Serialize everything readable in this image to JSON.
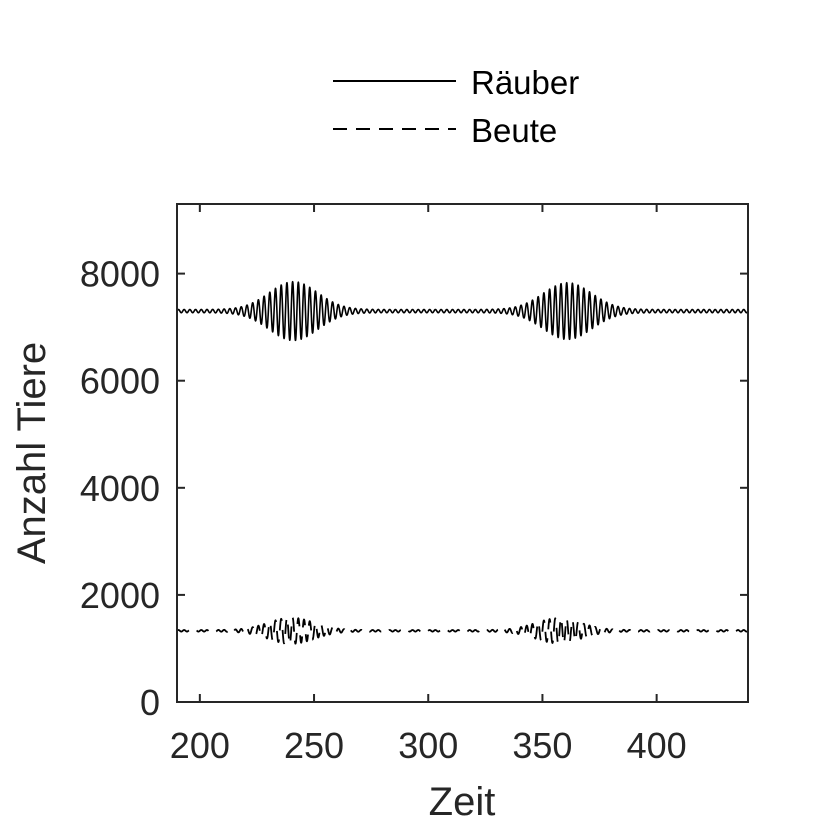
{
  "chart_data": {
    "type": "line",
    "title": "",
    "xlabel": "Zeit",
    "ylabel": "Anzahl Tiere",
    "xlim": [
      190,
      440
    ],
    "ylim": [
      0,
      9300
    ],
    "xticks": [
      200,
      250,
      300,
      350,
      400
    ],
    "yticks": [
      0,
      2000,
      4000,
      6000,
      8000
    ],
    "xtick_labels": [
      "200",
      "250",
      "300",
      "350",
      "400"
    ],
    "ytick_labels": [
      "0",
      "2000",
      "4000",
      "6000",
      "8000"
    ],
    "grid": false,
    "legend_position": "top",
    "line_color": "#000000",
    "axis_color": "#262626",
    "series": [
      {
        "name": "Räuber",
        "line_style": "solid",
        "baseline": 7300,
        "oscillation_period": 2.5,
        "bursts": [
          {
            "center": 241,
            "width": 15,
            "amplitude": 520
          },
          {
            "center": 361,
            "width": 15,
            "amplitude": 500
          }
        ],
        "minimum_amplitude": 30
      },
      {
        "name": "Beute",
        "line_style": "dashed",
        "baseline": 1330,
        "oscillation_period": 2.5,
        "bursts": [
          {
            "center": 240,
            "width": 14,
            "amplitude": 230
          },
          {
            "center": 357,
            "width": 14,
            "amplitude": 220
          }
        ],
        "minimum_amplitude": 15
      }
    ]
  }
}
